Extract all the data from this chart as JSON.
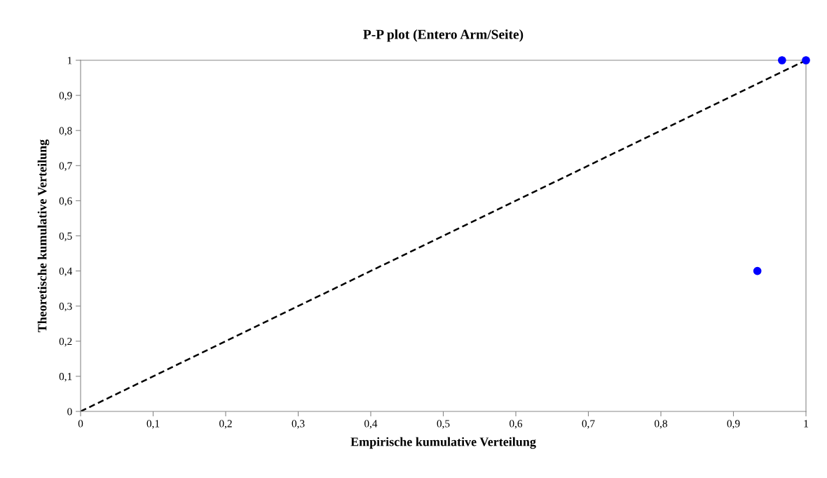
{
  "chart_data": {
    "type": "scatter",
    "title": "P-P plot (Entero Arm/Seite)",
    "xlabel": "Empirische kumulative Verteilung",
    "ylabel": "Theoretische kumulative Verteilung",
    "series": [
      {
        "color": "#0000ff",
        "marker": "circle",
        "x": [
          0.933,
          0.967,
          1
        ],
        "values": [
          0.4,
          1,
          1
        ]
      },
      {
        "type": "line",
        "color": "#000000",
        "line_style": "dashed",
        "marker": "none",
        "x": [
          0,
          1
        ],
        "values": [
          0,
          1
        ]
      }
    ],
    "xlim": [
      0,
      1
    ],
    "ylim": [
      0,
      1
    ],
    "xticks": [
      0,
      {
        "value": 0.1,
        "label": "0,1"
      },
      {
        "value": 0.2,
        "label": "0,2"
      },
      {
        "value": 0.3,
        "label": "0,3"
      },
      {
        "value": 0.4,
        "label": "0,4"
      },
      {
        "value": 0.5,
        "label": "0,5"
      },
      {
        "value": 0.6,
        "label": "0,6"
      },
      {
        "value": 0.7,
        "label": "0,7"
      },
      {
        "value": 0.8,
        "label": "0,8"
      },
      {
        "value": 0.9,
        "label": "0,9"
      },
      1
    ],
    "yticks": [
      0,
      {
        "value": 0.1,
        "label": "0,1"
      },
      {
        "value": 0.2,
        "label": "0,2"
      },
      {
        "value": 0.3,
        "label": "0,3"
      },
      {
        "value": 0.4,
        "label": "0,4"
      },
      {
        "value": 0.5,
        "label": "0,5"
      },
      {
        "value": 0.6,
        "label": "0,6"
      },
      {
        "value": 0.7,
        "label": "0,7"
      },
      {
        "value": 0.8,
        "label": "0,8"
      },
      {
        "value": 0.9,
        "label": "0,9"
      },
      1
    ],
    "grid": false,
    "legend": false
  }
}
